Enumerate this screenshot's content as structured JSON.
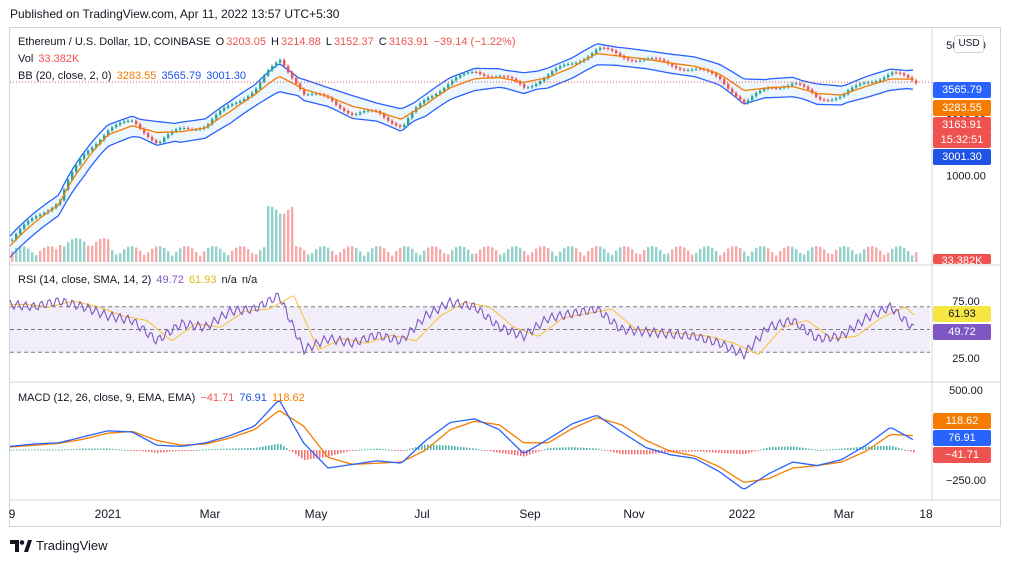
{
  "header": {
    "published": "Published on TradingView.com, Apr 11, 2022 13:57 UTC+5:30"
  },
  "price_panel": {
    "symbol": "Ethereum / U.S. Dollar, 1D, COINBASE",
    "o_label": "O",
    "o_val": "3203.05",
    "h_label": "H",
    "h_val": "3214.88",
    "l_label": "L",
    "l_val": "3152.37",
    "c_label": "C",
    "c_val": "3163.91",
    "change": "−39.14 (−1.22%)",
    "vol_label": "Vol",
    "vol_val": "33.382K",
    "bb_label": "BB (20, close, 2, 0)",
    "bb_basis": "3283.55",
    "bb_upper": "3565.79",
    "bb_lower": "3001.30",
    "currency": "USD",
    "y_ticks": [
      "5000.00",
      "2000.00",
      "1000.00"
    ],
    "tags": {
      "upper": "3565.79",
      "basis": "3283.55",
      "last": "3163.91",
      "countdown": "15:32:51",
      "lower": "3001.30",
      "vol": "33.382K"
    }
  },
  "rsi_panel": {
    "label": "RSI (14, close, SMA, 14, 2)",
    "rsi_val": "49.72",
    "ma_val": "61.93",
    "na1": "n/a",
    "na2": "n/a",
    "y_ticks": [
      "75.00",
      "25.00"
    ],
    "tags": {
      "ma": "61.93",
      "rsi": "49.72"
    }
  },
  "macd_panel": {
    "label": "MACD (12, 26, close, 9, EMA, EMA)",
    "hist_val": "−41.71",
    "macd_val": "76.91",
    "signal_val": "118.62",
    "y_ticks": [
      "500.00",
      "−250.00"
    ],
    "tags": {
      "signal": "118.62",
      "macd": "76.91",
      "hist": "−41.71"
    }
  },
  "x_axis": {
    "ticks": [
      "9",
      "2021",
      "Mar",
      "May",
      "Jul",
      "Sep",
      "Nov",
      "2022",
      "Mar",
      "18"
    ]
  },
  "footer": {
    "brand": "TradingView"
  },
  "colors": {
    "up": "#26a69a",
    "down": "#ef5350",
    "basis": "#f57c00",
    "band": "#2962ff",
    "rsi": "#7e57c2",
    "rsi_ma": "#f5c542",
    "macd": "#2962ff",
    "signal": "#f57c00"
  },
  "chart_data": {
    "type": "line",
    "title": "Ethereum / U.S. Dollar, 1D, COINBASE",
    "y_scale": "log",
    "x": [
      "2020-11-09",
      "2020-12-01",
      "2021-01-01",
      "2021-01-20",
      "2021-02-10",
      "2021-02-20",
      "2021-03-01",
      "2021-03-15",
      "2021-04-01",
      "2021-04-15",
      "2021-05-01",
      "2021-05-12",
      "2021-05-20",
      "2021-06-01",
      "2021-06-20",
      "2021-07-01",
      "2021-07-20",
      "2021-08-01",
      "2021-08-15",
      "2021-09-01",
      "2021-09-10",
      "2021-09-25",
      "2021-10-05",
      "2021-10-20",
      "2021-11-09",
      "2021-11-25",
      "2021-12-05",
      "2021-12-20",
      "2022-01-01",
      "2022-01-15",
      "2022-01-24",
      "2022-02-05",
      "2022-02-15",
      "2022-02-24",
      "2022-03-10",
      "2022-03-25",
      "2022-04-03",
      "2022-04-11"
    ],
    "series": [
      {
        "values": [
          450,
          600,
          740,
          1300,
          1780,
          1950,
          1480,
          1800,
          1850,
          2400,
          2900,
          4150,
          2700,
          2600,
          2100,
          2200,
          1800,
          2600,
          3200,
          3600,
          3400,
          2950,
          3500,
          4000,
          4800,
          4300,
          4200,
          3900,
          3700,
          3300,
          2400,
          3000,
          3100,
          2600,
          2650,
          3200,
          3520,
          3164
        ]
      },
      {
        "name": "BB (20, close, 2, 0)",
        "values": [
          420,
          560,
          700,
          1150,
          1650,
          1850,
          1700,
          1720,
          1800,
          2200,
          2700,
          3400,
          2900,
          2650,
          2350,
          2200,
          2000,
          2400,
          2950,
          3300,
          3350,
          3150,
          3350,
          3800,
          4500,
          4350,
          4200,
          4000,
          3850,
          3500,
          2850,
          2950,
          3000,
          2750,
          2700,
          3000,
          3290,
          3284
        ]
      }
    ],
    "rsi": {
      "name": "RSI (14, close, SMA, 14, 2)",
      "values": [
        72,
        70,
        75,
        70,
        62,
        58,
        40,
        55,
        52,
        66,
        68,
        80,
        32,
        42,
        38,
        45,
        40,
        62,
        74,
        70,
        52,
        44,
        60,
        64,
        68,
        50,
        48,
        46,
        44,
        38,
        28,
        52,
        58,
        42,
        44,
        60,
        70,
        49.72
      ],
      "ma_last": 61.93,
      "levels": [
        70,
        50,
        30
      ]
    },
    "macd": {
      "name": "MACD (12, 26, close, 9, EMA, EMA)",
      "macd": [
        30,
        50,
        60,
        110,
        160,
        150,
        40,
        30,
        60,
        120,
        200,
        420,
        60,
        -150,
        -120,
        -90,
        -110,
        80,
        230,
        260,
        170,
        -30,
        90,
        220,
        290,
        150,
        20,
        -40,
        -70,
        -180,
        -330,
        -200,
        -100,
        -130,
        -80,
        40,
        190,
        76.91
      ],
      "signal": [
        25,
        40,
        55,
        90,
        140,
        155,
        80,
        40,
        50,
        100,
        170,
        330,
        200,
        -60,
        -120,
        -110,
        -100,
        0,
        170,
        240,
        210,
        60,
        60,
        180,
        270,
        210,
        80,
        -10,
        -50,
        -140,
        -270,
        -240,
        -150,
        -130,
        -100,
        -10,
        130,
        118.62
      ],
      "hist_last": -41.71
    }
  }
}
